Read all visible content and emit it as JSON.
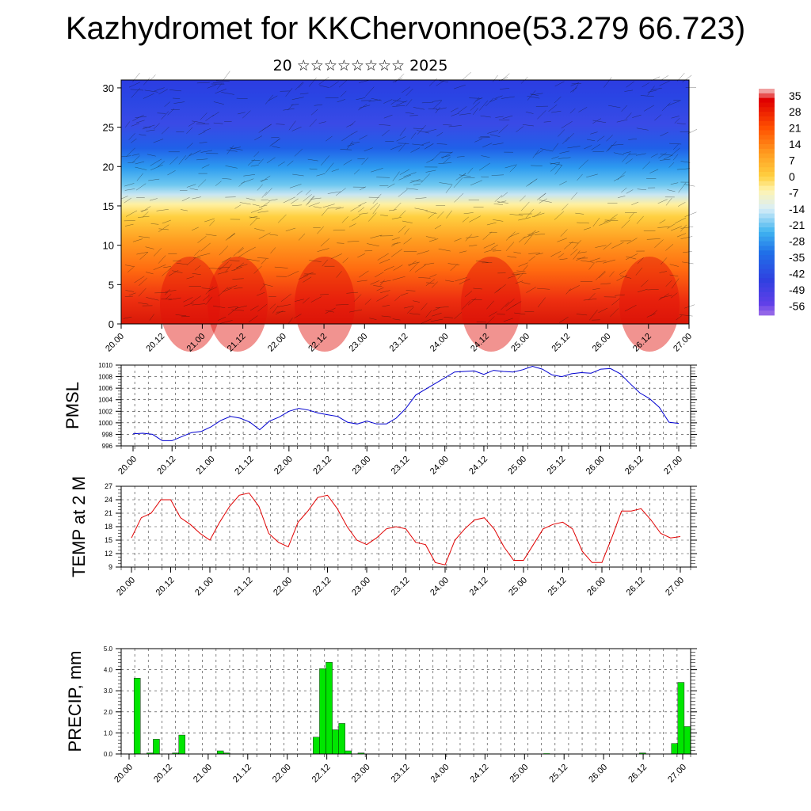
{
  "title": "Kazhydromet for KKChervonnoe(53.279 66.723)",
  "subtitle": "20 ☆☆☆☆☆☆☆☆ 2025",
  "time_labels": [
    "20.00",
    "20.12",
    "21.00",
    "21.12",
    "22.00",
    "22.12",
    "23.00",
    "23.12",
    "24.00",
    "24.12",
    "25.00",
    "25.12",
    "26.00",
    "26.12",
    "27.00"
  ],
  "chart_data": [
    {
      "type": "heatmap",
      "name": "temperature cross-section",
      "y_ticks": [
        0,
        5,
        10,
        15,
        20,
        25,
        30
      ],
      "ylim": [
        0,
        31
      ],
      "colorbar": {
        "labels": [
          "35",
          "28",
          "21",
          "14",
          "7",
          "0",
          "-7",
          "-14",
          "-21",
          "-28",
          "-35",
          "-42",
          "-49",
          "-56"
        ],
        "colors": [
          "#e00000",
          "#f03020",
          "#ff6000",
          "#ff9c20",
          "#ffd040",
          "#fff0a0",
          "#c8e6f2",
          "#6ec8f0",
          "#2e9cf0",
          "#2060e8",
          "#3040e0",
          "#5a30e8",
          "#8a3ae0",
          "#b090f0"
        ],
        "range": [
          -60,
          38
        ]
      },
      "grid": false
    },
    {
      "type": "line",
      "ylabel": "PMSL",
      "ylim": [
        996,
        1010
      ],
      "y_ticks": [
        996,
        998,
        1000,
        1002,
        1004,
        1006,
        1008,
        1010
      ],
      "color": "#0000d0",
      "grid": true,
      "values": [
        998.1,
        998.2,
        998.0,
        996.9,
        996.9,
        997.6,
        998.3,
        998.5,
        999.3,
        1000.4,
        1001.1,
        1000.8,
        1000.1,
        998.8,
        1000.3,
        1001.0,
        1002.0,
        1002.5,
        1002.2,
        1001.7,
        1001.4,
        1001.1,
        1000.1,
        999.8,
        1000.3,
        999.8,
        999.8,
        1000.8,
        1002.5,
        1004.8,
        1005.8,
        1006.8,
        1007.8,
        1008.8,
        1008.9,
        1009.0,
        1008.4,
        1009.1,
        1008.9,
        1008.8,
        1009.2,
        1009.8,
        1009.3,
        1008.3,
        1008.0,
        1008.5,
        1008.7,
        1008.6,
        1009.3,
        1009.4,
        1008.5,
        1006.8,
        1005.2,
        1004.2,
        1002.7,
        1000.1,
        999.9
      ]
    },
    {
      "type": "line",
      "ylabel": "TEMP at 2 M",
      "ylim": [
        9,
        27
      ],
      "y_ticks": [
        9,
        12,
        15,
        18,
        21,
        24,
        27
      ],
      "color": "#e00000",
      "grid": true,
      "values": [
        15.5,
        20.0,
        21.0,
        24.0,
        24.0,
        20.0,
        18.5,
        16.5,
        15.0,
        19.0,
        22.5,
        25.0,
        25.5,
        22.5,
        16.5,
        14.5,
        13.5,
        19.0,
        21.5,
        24.5,
        25.0,
        22.0,
        18.0,
        15.0,
        14.0,
        15.5,
        17.5,
        18.0,
        17.5,
        14.5,
        14.0,
        10.0,
        9.5,
        15.0,
        17.5,
        19.5,
        20.0,
        17.5,
        13.5,
        10.5,
        10.5,
        14.0,
        17.5,
        18.5,
        19.0,
        17.5,
        12.5,
        10.0,
        10.0,
        15.5,
        21.5,
        21.5,
        22.0,
        19.5,
        16.5,
        15.5,
        15.8
      ]
    },
    {
      "type": "bar",
      "ylabel": "PRECIP, mm",
      "ylim": [
        0,
        5
      ],
      "y_ticks": [
        "0.0",
        "1.0",
        "2.0",
        "3.0",
        "4.0",
        "5.0"
      ],
      "color": "#00e600",
      "grid": true,
      "values": [
        0,
        0,
        3.6,
        0,
        0.05,
        0.7,
        0,
        0,
        0.05,
        0.9,
        0,
        0,
        0,
        0,
        0,
        0.15,
        0.05,
        0,
        0,
        0,
        0,
        0,
        0,
        0,
        0,
        0,
        0,
        0,
        0,
        0,
        0.8,
        4.05,
        4.35,
        1.15,
        1.45,
        0.15,
        0,
        0.05,
        0,
        0,
        0,
        0,
        0,
        0,
        0,
        0,
        0,
        0,
        0,
        0,
        0,
        0,
        0,
        0,
        0,
        0,
        0,
        0,
        0,
        0,
        0,
        0,
        0,
        0,
        0,
        0,
        0.03,
        0,
        0,
        0,
        0,
        0,
        0,
        0,
        0,
        0,
        0,
        0,
        0,
        0,
        0,
        0.05,
        0,
        0,
        0,
        0,
        0.5,
        3.4,
        1.3
      ]
    }
  ]
}
